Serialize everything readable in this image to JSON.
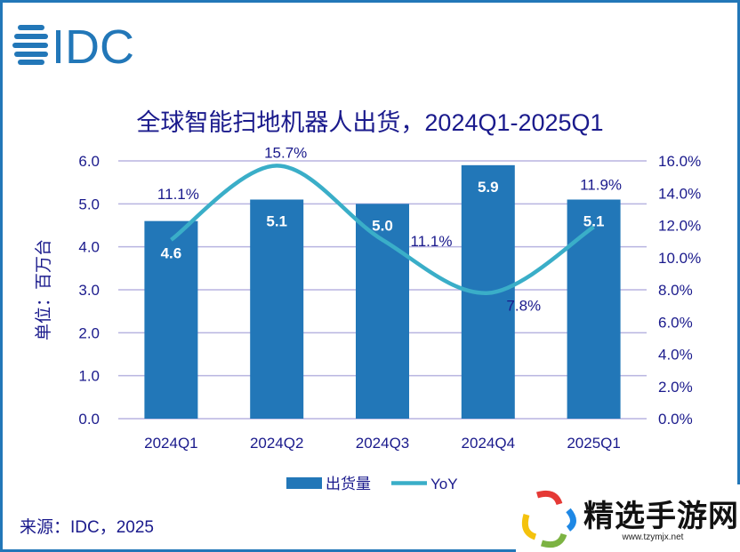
{
  "brand": {
    "logo_text": "IDC",
    "color": "#2277b8"
  },
  "chart_data": {
    "type": "bar+line",
    "title": "全球智能扫地机器人出货，2024Q1-2025Q1",
    "ylabel": "单位：百万台",
    "categories": [
      "2024Q1",
      "2024Q2",
      "2024Q3",
      "2024Q4",
      "2025Q1"
    ],
    "series": [
      {
        "name": "出货量",
        "type": "bar",
        "axis": "left",
        "values": [
          4.6,
          5.1,
          5.0,
          5.9,
          5.1
        ],
        "labels": [
          "4.6",
          "5.1",
          "5.0",
          "5.9",
          "5.1"
        ],
        "color": "#2277b8"
      },
      {
        "name": "YoY",
        "type": "line",
        "axis": "right",
        "values": [
          11.1,
          15.7,
          11.1,
          7.8,
          11.9
        ],
        "labels": [
          "11.1%",
          "15.7%",
          "11.1%",
          "7.8%",
          "11.9%"
        ],
        "color": "#3aaec8"
      }
    ],
    "ylim": [
      0,
      6
    ],
    "yticks": [
      "0.0",
      "1.0",
      "2.0",
      "3.0",
      "4.0",
      "5.0",
      "6.0"
    ],
    "y2lim": [
      0,
      16
    ],
    "y2ticks": [
      "0.0%",
      "2.0%",
      "4.0%",
      "6.0%",
      "8.0%",
      "10.0%",
      "12.0%",
      "14.0%",
      "16.0%"
    ],
    "grid": true,
    "legend": "bottom"
  },
  "source": "来源：IDC，2025",
  "watermark": {
    "text": "精选手游网",
    "url": "www.tzymjx.net"
  }
}
